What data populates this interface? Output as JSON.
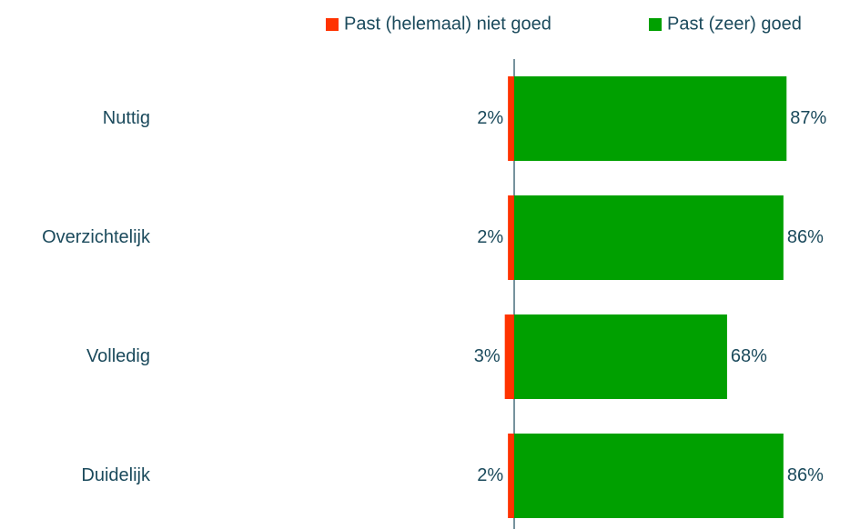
{
  "chart_data": {
    "type": "diverging-bar",
    "categories": [
      "Nuttig",
      "Overzichtelijk",
      "Volledig",
      "Duidelijk"
    ],
    "series": [
      {
        "name": "Past (helemaal) niet goed",
        "color": "#ff3300",
        "values": [
          2,
          2,
          3,
          2
        ],
        "value_labels": [
          "2%",
          "2%",
          "3%",
          "2%"
        ]
      },
      {
        "name": "Past (zeer) goed",
        "color": "#00a000",
        "values": [
          87,
          86,
          68,
          86
        ],
        "value_labels": [
          "87%",
          "86%",
          "68%",
          "86%"
        ]
      }
    ]
  }
}
